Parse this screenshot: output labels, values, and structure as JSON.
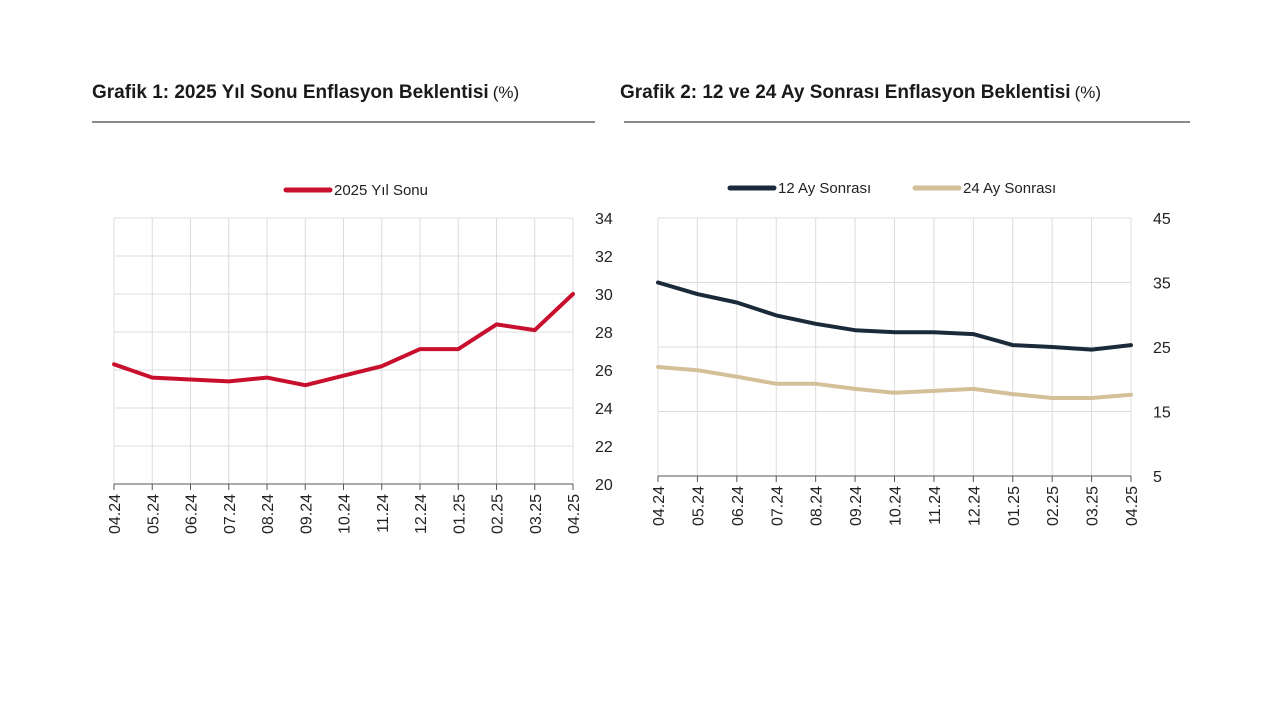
{
  "chart1": {
    "title": "Grafik 1: 2025 Yıl Sonu Enflasyon Beklentisi",
    "unit": "(%)",
    "chart_data": {
      "type": "line",
      "categories": [
        "04.24",
        "05.24",
        "06.24",
        "07.24",
        "08.24",
        "09.24",
        "10.24",
        "11.24",
        "12.24",
        "01.25",
        "02.25",
        "03.25",
        "04.25"
      ],
      "series": [
        {
          "name": "2025 Yıl Sonu",
          "color": "#c8102e",
          "values": [
            26.3,
            25.6,
            25.5,
            25.4,
            25.6,
            25.2,
            25.7,
            26.2,
            27.1,
            27.1,
            28.4,
            28.1,
            30.0
          ]
        }
      ],
      "ylim": [
        20,
        34
      ],
      "yticks": [
        20,
        22,
        24,
        26,
        28,
        30,
        32,
        34
      ],
      "y_axis_side": "right",
      "grid": true,
      "legend": "top"
    }
  },
  "chart2": {
    "title": "Grafik 2: 12 ve 24 Ay Sonrası Enflasyon Beklentisi",
    "unit": "(%)",
    "chart_data": {
      "type": "line",
      "categories": [
        "04.24",
        "05.24",
        "06.24",
        "07.24",
        "08.24",
        "09.24",
        "10.24",
        "11.24",
        "12.24",
        "01.25",
        "02.25",
        "03.25",
        "04.25"
      ],
      "series": [
        {
          "name": "12 Ay Sonrası",
          "color": "#1b2a3a",
          "values": [
            35.0,
            33.2,
            31.9,
            29.9,
            28.6,
            27.6,
            27.3,
            27.3,
            27.0,
            25.3,
            25.0,
            24.6,
            25.3
          ]
        },
        {
          "name": "24 Ay Sonrası",
          "color": "#d3bf98",
          "values": [
            21.9,
            21.4,
            20.4,
            19.3,
            19.3,
            18.5,
            17.9,
            18.2,
            18.5,
            17.7,
            17.1,
            17.1,
            17.6
          ]
        }
      ],
      "ylim": [
        5,
        45
      ],
      "yticks": [
        5,
        15,
        25,
        35,
        45
      ],
      "y_axis_side": "right",
      "grid": true,
      "legend": "top"
    }
  }
}
